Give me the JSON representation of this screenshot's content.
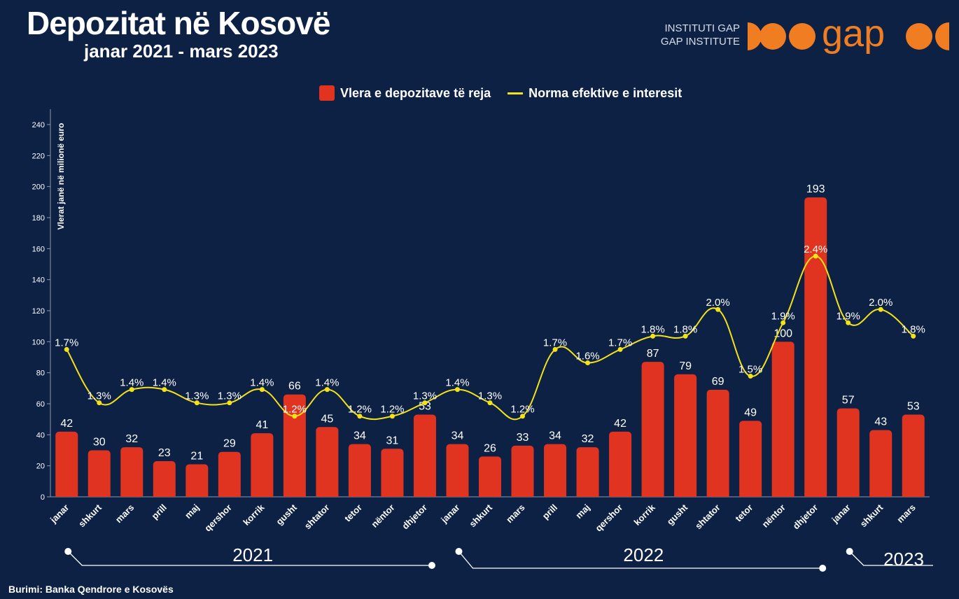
{
  "header": {
    "title": "Depozitat në Kosovë",
    "subtitle": "janar 2021 - mars 2023"
  },
  "brand": {
    "line1": "INSTITUTI GAP",
    "line2": "GAP INSTITUTE",
    "logo_text": "gap",
    "accent_color": "#f07d22"
  },
  "legend": {
    "bar_label": "Vlera e depozitave të reja",
    "line_label": "Norma efektive e interesit"
  },
  "source": "Burimi: Banka Qendrore e Kosovës",
  "colors": {
    "background": "#0d2145",
    "bar": "#e03420",
    "line": "#f3e21a"
  },
  "chart_data": {
    "type": "bar",
    "ylabel": "Vlerat janë në milionë euro",
    "ylim": [
      0,
      240
    ],
    "yticks": [
      0,
      20,
      40,
      60,
      80,
      100,
      120,
      140,
      160,
      180,
      200,
      220,
      240
    ],
    "grid": false,
    "legend_position": "top-center",
    "categories": [
      "janar",
      "shkurt",
      "mars",
      "prill",
      "maj",
      "qershor",
      "korrik",
      "gusht",
      "shtator",
      "tetor",
      "nëntor",
      "dhjetor",
      "janar",
      "shkurt",
      "mars",
      "prill",
      "maj",
      "qershor",
      "korrik",
      "gusht",
      "shtator",
      "tetor",
      "nëntor",
      "dhjetor",
      "janar",
      "shkurt",
      "mars"
    ],
    "series": [
      {
        "name": "Vlera e depozitave të reja",
        "type": "bar",
        "values": [
          42,
          30,
          32,
          23,
          21,
          29,
          41,
          66,
          45,
          34,
          31,
          53,
          34,
          26,
          33,
          34,
          32,
          42,
          87,
          79,
          69,
          49,
          100,
          193,
          57,
          43,
          53
        ]
      },
      {
        "name": "Norma efektive e interesit",
        "type": "line",
        "values": [
          1.7,
          1.3,
          1.4,
          1.4,
          1.3,
          1.3,
          1.4,
          1.2,
          1.4,
          1.2,
          1.2,
          1.3,
          1.4,
          1.3,
          1.2,
          1.7,
          1.6,
          1.7,
          1.8,
          1.8,
          2.0,
          1.5,
          1.9,
          2.4,
          1.9,
          2.0,
          1.8
        ],
        "labels": [
          "1.7%",
          "1.3%",
          "1.4%",
          "1.4%",
          "1.3%",
          "1.3%",
          "1.4%",
          "1.2%",
          "1.4%",
          "1.2%",
          "1.2%",
          "1.3%",
          "1.4%",
          "1.3%",
          "1.2%",
          "1.7%",
          "1.6%",
          "1.7%",
          "1.8%",
          "1.8%",
          "2.0%",
          "1.5%",
          "1.9%",
          "2.4%",
          "1.9%",
          "2.0%",
          "1.8%"
        ]
      }
    ],
    "years": [
      {
        "label": "2021",
        "start": 0,
        "end": 11
      },
      {
        "label": "2022",
        "start": 12,
        "end": 23
      },
      {
        "label": "2023",
        "start": 24,
        "end": 26
      }
    ]
  }
}
